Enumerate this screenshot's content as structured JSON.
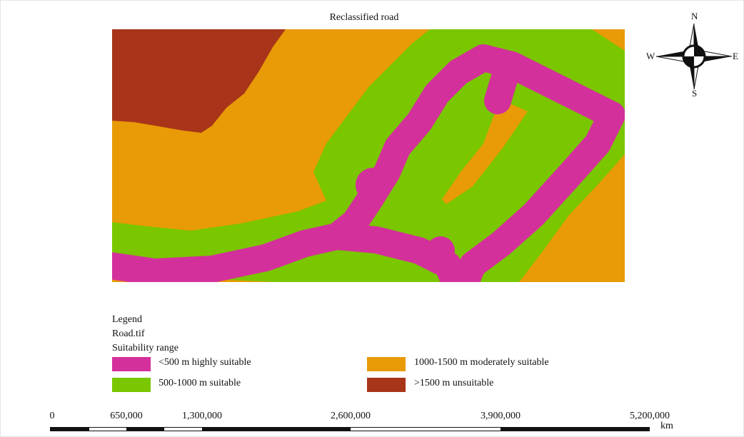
{
  "title": "Reclassified road",
  "compass": {
    "n": "N",
    "e": "E",
    "s": "S",
    "w": "W"
  },
  "legend": {
    "heading": "Legend",
    "layer": "Road.tif",
    "field": "Suitability range",
    "items": [
      {
        "label": "<500 m highly suitable",
        "color": "#d4309b"
      },
      {
        "label": "500-1000 m suitable",
        "color": "#7ac600"
      },
      {
        "label": "1000-1500 m moderately suitable",
        "color": "#e89b06"
      },
      {
        "label": ">1500 m unsuitable",
        "color": "#a8351a"
      }
    ]
  },
  "scale": {
    "ticks": [
      "0",
      "650,000",
      "1,300,000",
      "2,600,000",
      "3,900,000",
      "5,200,000"
    ],
    "unit": "km"
  }
}
